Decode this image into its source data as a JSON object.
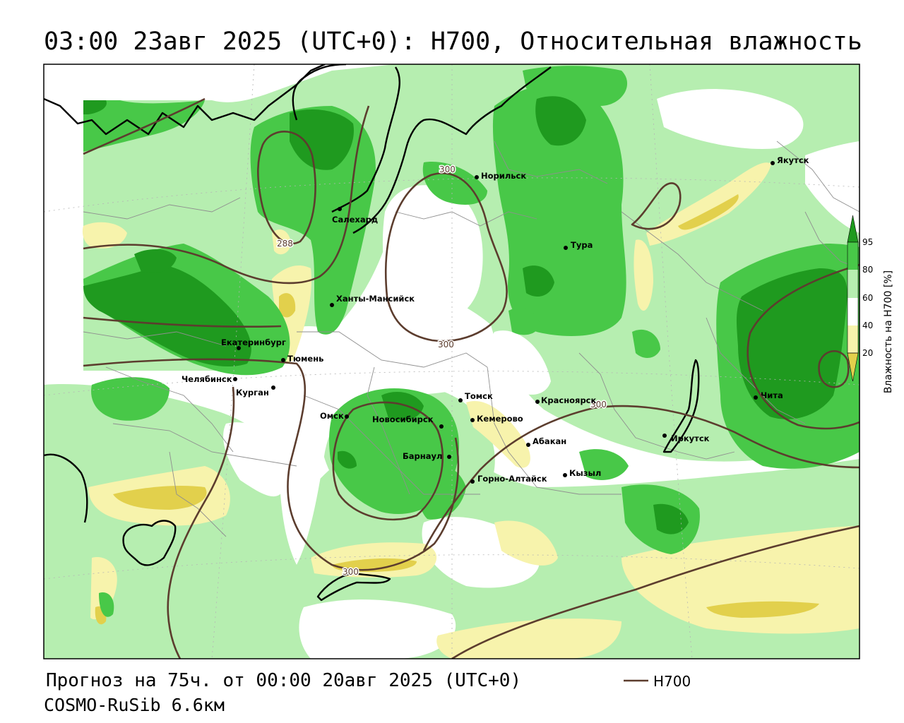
{
  "title": "03:00 23авг 2025 (UTC+0): H700, Относительная влажность",
  "footer": {
    "forecast": "Прогноз на 75ч. от 00:00 20авг 2025 (UTC+0)",
    "model": "COSMO-RuSib 6.6км",
    "legend_label": "H700"
  },
  "colorbar": {
    "label": "Влажность на H700 [%]",
    "ticks": [
      "95",
      "80",
      "60",
      "40",
      "20"
    ]
  },
  "cities": [
    "Салехард",
    "Норильск",
    "Якутск",
    "Тура",
    "Ханты-Мансийск",
    "Екатеринбург",
    "Тюмень",
    "Челябинск",
    "Курган",
    "Омск",
    "Томск",
    "Новосибирск",
    "Кемерово",
    "Красноярск",
    "Барнаул",
    "Абакан",
    "Горно-Алтайск",
    "Кызыл",
    "Иркутск",
    "Чита"
  ],
  "contour_labels": [
    "300",
    "288",
    "300",
    "300",
    "300"
  ],
  "colors": {
    "dark_green": "#1f9a1f",
    "green": "#48c848",
    "light_green": "#b6eeb0",
    "white": "#ffffff",
    "pale_yellow": "#f7f3ac",
    "yellow": "#e2d04c",
    "contour": "#5c3d2e",
    "coast": "#000000",
    "border": "#8f8f8f"
  }
}
